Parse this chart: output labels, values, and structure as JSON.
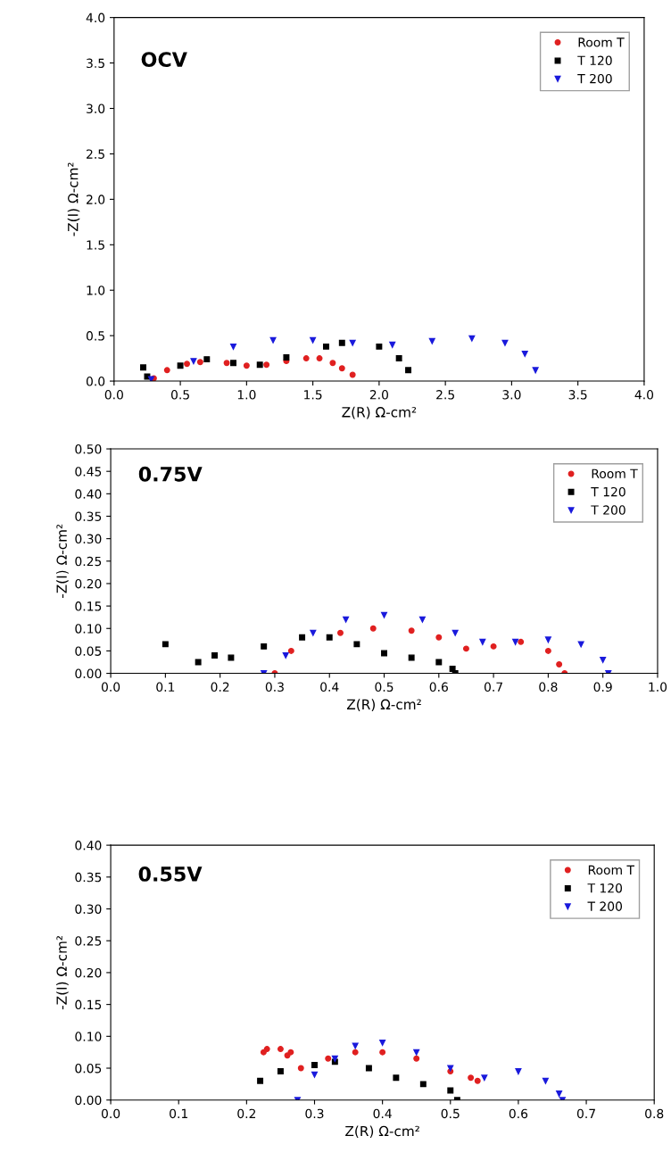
{
  "chart_data": [
    {
      "type": "scatter",
      "xlabel": "Z(R) Ω-cm²",
      "ylabel": "-Z(I) Ω-cm²",
      "annotations": [
        "OCV"
      ],
      "legend": "top right",
      "grid": false,
      "xlim": [
        0,
        4
      ],
      "ylim": [
        0,
        4
      ],
      "xticks": [
        {
          "value": 0,
          "label": "0.0"
        },
        {
          "value": 0.5,
          "label": "0.5"
        },
        {
          "value": 1,
          "label": "1.0"
        },
        {
          "value": 1.5,
          "label": "1.5"
        },
        {
          "value": 2,
          "label": "2.0"
        },
        {
          "value": 2.5,
          "label": "2.5"
        },
        {
          "value": 3,
          "label": "3.0"
        },
        {
          "value": 3.5,
          "label": "3.5"
        },
        {
          "value": 4,
          "label": "4.0"
        }
      ],
      "yticks": [
        {
          "value": 0,
          "label": "0.0"
        },
        {
          "value": 0.5,
          "label": "0.5"
        },
        {
          "value": 1,
          "label": "1.0"
        },
        {
          "value": 1.5,
          "label": "1.5"
        },
        {
          "value": 2,
          "label": "2.0"
        },
        {
          "value": 2.5,
          "label": "2.5"
        },
        {
          "value": 3,
          "label": "3.0"
        },
        {
          "value": 3.5,
          "label": "3.5"
        },
        {
          "value": 4,
          "label": "4.0"
        }
      ],
      "series": [
        {
          "name": "Room T",
          "color": "#e02020",
          "marker": "circle",
          "x": [
            0.3,
            0.4,
            0.55,
            0.65,
            0.85,
            1.0,
            1.15,
            1.3,
            1.45,
            1.55,
            1.65,
            1.72,
            1.8
          ],
          "values": [
            0.03,
            0.12,
            0.19,
            0.21,
            0.2,
            0.17,
            0.18,
            0.22,
            0.25,
            0.25,
            0.2,
            0.14,
            0.07
          ]
        },
        {
          "name": "T 120",
          "color": "#000000",
          "marker": "square",
          "x": [
            0.22,
            0.25,
            0.5,
            0.7,
            0.9,
            1.1,
            1.3,
            1.6,
            1.72,
            2.0,
            2.15,
            2.22
          ],
          "values": [
            0.15,
            0.05,
            0.17,
            0.24,
            0.2,
            0.18,
            0.26,
            0.38,
            0.42,
            0.38,
            0.25,
            0.12
          ]
        },
        {
          "name": "T 200",
          "color": "#1a1adc",
          "marker": "triangle",
          "x": [
            0.28,
            0.6,
            0.9,
            1.2,
            1.5,
            1.8,
            2.1,
            2.4,
            2.7,
            2.95,
            3.1,
            3.18
          ],
          "values": [
            0.02,
            0.22,
            0.38,
            0.45,
            0.45,
            0.42,
            0.4,
            0.44,
            0.47,
            0.42,
            0.3,
            0.12
          ]
        }
      ]
    },
    {
      "type": "scatter",
      "xlabel": "Z(R) Ω-cm²",
      "ylabel": "-Z(I) Ω-cm²",
      "annotations": [
        "0.75V"
      ],
      "legend": "top right",
      "grid": false,
      "xlim": [
        0,
        1
      ],
      "ylim": [
        0,
        0.5
      ],
      "xticks": [
        {
          "value": 0,
          "label": "0.0"
        },
        {
          "value": 0.1,
          "label": "0.1"
        },
        {
          "value": 0.2,
          "label": "0.2"
        },
        {
          "value": 0.3,
          "label": "0.3"
        },
        {
          "value": 0.4,
          "label": "0.4"
        },
        {
          "value": 0.5,
          "label": "0.5"
        },
        {
          "value": 0.6,
          "label": "0.6"
        },
        {
          "value": 0.7,
          "label": "0.7"
        },
        {
          "value": 0.8,
          "label": "0.8"
        },
        {
          "value": 0.9,
          "label": "0.9"
        },
        {
          "value": 1,
          "label": "1.0"
        }
      ],
      "yticks": [
        {
          "value": 0,
          "label": "0.00"
        },
        {
          "value": 0.05,
          "label": "0.05"
        },
        {
          "value": 0.1,
          "label": "0.10"
        },
        {
          "value": 0.15,
          "label": "0.15"
        },
        {
          "value": 0.2,
          "label": "0.20"
        },
        {
          "value": 0.25,
          "label": "0.25"
        },
        {
          "value": 0.3,
          "label": "0.30"
        },
        {
          "value": 0.35,
          "label": "0.35"
        },
        {
          "value": 0.4,
          "label": "0.40"
        },
        {
          "value": 0.45,
          "label": "0.45"
        },
        {
          "value": 0.5,
          "label": "0.50"
        }
      ],
      "series": [
        {
          "name": "Room T",
          "color": "#e02020",
          "marker": "circle",
          "x": [
            0.3,
            0.33,
            0.42,
            0.48,
            0.55,
            0.6,
            0.65,
            0.7,
            0.75,
            0.8,
            0.82,
            0.83
          ],
          "values": [
            0.0,
            0.05,
            0.09,
            0.1,
            0.095,
            0.08,
            0.055,
            0.06,
            0.07,
            0.05,
            0.02,
            0.0
          ]
        },
        {
          "name": "T 120",
          "color": "#000000",
          "marker": "square",
          "x": [
            0.1,
            0.16,
            0.19,
            0.22,
            0.28,
            0.35,
            0.4,
            0.45,
            0.5,
            0.55,
            0.6,
            0.625,
            0.63
          ],
          "values": [
            0.065,
            0.025,
            0.04,
            0.035,
            0.06,
            0.08,
            0.08,
            0.065,
            0.045,
            0.035,
            0.025,
            0.01,
            0.0
          ]
        },
        {
          "name": "T 200",
          "color": "#1a1adc",
          "marker": "triangle",
          "x": [
            0.28,
            0.32,
            0.37,
            0.43,
            0.5,
            0.57,
            0.63,
            0.68,
            0.74,
            0.8,
            0.86,
            0.9,
            0.91
          ],
          "values": [
            0.0,
            0.04,
            0.09,
            0.12,
            0.13,
            0.12,
            0.09,
            0.07,
            0.07,
            0.075,
            0.065,
            0.03,
            0.0
          ]
        }
      ]
    },
    {
      "type": "scatter",
      "xlabel": "Z(R) Ω-cm²",
      "ylabel": "-Z(I) Ω-cm²",
      "annotations": [
        "0.55V"
      ],
      "legend": "top right",
      "grid": false,
      "xlim": [
        0,
        0.8
      ],
      "ylim": [
        0,
        0.4
      ],
      "xticks": [
        {
          "value": 0,
          "label": "0.0"
        },
        {
          "value": 0.1,
          "label": "0.1"
        },
        {
          "value": 0.2,
          "label": "0.2"
        },
        {
          "value": 0.3,
          "label": "0.3"
        },
        {
          "value": 0.4,
          "label": "0.4"
        },
        {
          "value": 0.5,
          "label": "0.5"
        },
        {
          "value": 0.6,
          "label": "0.6"
        },
        {
          "value": 0.7,
          "label": "0.7"
        },
        {
          "value": 0.8,
          "label": "0.8"
        }
      ],
      "yticks": [
        {
          "value": 0,
          "label": "0.00"
        },
        {
          "value": 0.05,
          "label": "0.05"
        },
        {
          "value": 0.1,
          "label": "0.10"
        },
        {
          "value": 0.15,
          "label": "0.15"
        },
        {
          "value": 0.2,
          "label": "0.20"
        },
        {
          "value": 0.25,
          "label": "0.25"
        },
        {
          "value": 0.3,
          "label": "0.30"
        },
        {
          "value": 0.35,
          "label": "0.35"
        },
        {
          "value": 0.4,
          "label": "0.40"
        }
      ],
      "series": [
        {
          "name": "Room T",
          "color": "#e02020",
          "marker": "circle",
          "x": [
            0.225,
            0.23,
            0.25,
            0.26,
            0.265,
            0.28,
            0.32,
            0.36,
            0.4,
            0.45,
            0.5,
            0.53,
            0.54
          ],
          "values": [
            0.075,
            0.08,
            0.08,
            0.07,
            0.075,
            0.05,
            0.065,
            0.075,
            0.075,
            0.065,
            0.045,
            0.035,
            0.03
          ]
        },
        {
          "name": "T 120",
          "color": "#000000",
          "marker": "square",
          "x": [
            0.22,
            0.25,
            0.3,
            0.33,
            0.38,
            0.42,
            0.46,
            0.5,
            0.51
          ],
          "values": [
            0.03,
            0.045,
            0.055,
            0.06,
            0.05,
            0.035,
            0.025,
            0.015,
            0.0
          ]
        },
        {
          "name": "T 200",
          "color": "#1a1adc",
          "marker": "triangle",
          "x": [
            0.275,
            0.3,
            0.33,
            0.36,
            0.4,
            0.45,
            0.5,
            0.55,
            0.6,
            0.64,
            0.66,
            0.665
          ],
          "values": [
            0.0,
            0.04,
            0.065,
            0.085,
            0.09,
            0.075,
            0.05,
            0.035,
            0.045,
            0.03,
            0.01,
            0.0
          ]
        }
      ]
    }
  ]
}
